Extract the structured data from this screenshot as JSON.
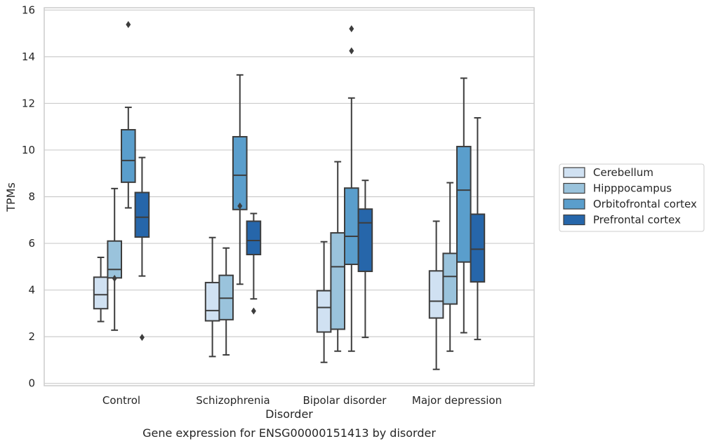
{
  "chart_data": {
    "type": "box",
    "caption": "Gene expression for ENSG00000151413 by disorder",
    "xlabel": "Disorder",
    "ylabel": "TPMs",
    "ylim": [
      -0.1,
      16.1
    ],
    "yticks": [
      0,
      2,
      4,
      6,
      8,
      10,
      12,
      14,
      16
    ],
    "grid": "horizontal",
    "legend_position": "right",
    "categories": [
      "Control",
      "Schizophrenia",
      "Bipolar disorder",
      "Major depression"
    ],
    "series": [
      {
        "name": "Cerebellum",
        "color": "#d0e1f2",
        "boxes": [
          {
            "whislo": 2.65,
            "q1": 3.2,
            "med": 3.8,
            "q3": 4.55,
            "whishi": 5.4,
            "fliers": []
          },
          {
            "whislo": 1.15,
            "q1": 2.68,
            "med": 3.12,
            "q3": 4.32,
            "whishi": 6.25,
            "fliers": []
          },
          {
            "whislo": 0.9,
            "q1": 2.2,
            "med": 3.25,
            "q3": 3.97,
            "whishi": 6.07,
            "fliers": []
          },
          {
            "whislo": 0.6,
            "q1": 2.8,
            "med": 3.52,
            "q3": 4.82,
            "whishi": 6.95,
            "fliers": []
          }
        ]
      },
      {
        "name": "Hipppocampus",
        "color": "#9ac3dc",
        "boxes": [
          {
            "whislo": 2.28,
            "q1": 4.52,
            "med": 4.88,
            "q3": 6.1,
            "whishi": 8.35,
            "fliers": [
              4.5
            ]
          },
          {
            "whislo": 1.22,
            "q1": 2.73,
            "med": 3.65,
            "q3": 4.63,
            "whishi": 5.8,
            "fliers": []
          },
          {
            "whislo": 1.38,
            "q1": 2.32,
            "med": 5.0,
            "q3": 6.45,
            "whishi": 9.5,
            "fliers": []
          },
          {
            "whislo": 1.38,
            "q1": 3.4,
            "med": 4.58,
            "q3": 5.57,
            "whishi": 8.6,
            "fliers": []
          }
        ]
      },
      {
        "name": "Orbitofrontal cortex",
        "color": "#5a9ecc",
        "boxes": [
          {
            "whislo": 7.52,
            "q1": 8.62,
            "med": 9.55,
            "q3": 10.87,
            "whishi": 11.83,
            "fliers": [
              15.38
            ]
          },
          {
            "whislo": 4.25,
            "q1": 7.45,
            "med": 8.92,
            "q3": 10.57,
            "whishi": 13.22,
            "fliers": [
              7.6
            ]
          },
          {
            "whislo": 1.38,
            "q1": 5.1,
            "med": 6.3,
            "q3": 8.37,
            "whishi": 12.23,
            "fliers": [
              15.2,
              14.25
            ]
          },
          {
            "whislo": 2.17,
            "q1": 5.2,
            "med": 8.28,
            "q3": 10.15,
            "whishi": 13.08,
            "fliers": []
          }
        ]
      },
      {
        "name": "Prefrontal cortex",
        "color": "#2666aa",
        "boxes": [
          {
            "whislo": 4.6,
            "q1": 6.27,
            "med": 7.12,
            "q3": 8.18,
            "whishi": 9.68,
            "fliers": [
              1.97
            ]
          },
          {
            "whislo": 3.62,
            "q1": 5.52,
            "med": 6.12,
            "q3": 6.95,
            "whishi": 7.28,
            "fliers": [
              3.1
            ]
          },
          {
            "whislo": 1.97,
            "q1": 4.8,
            "med": 6.88,
            "q3": 7.47,
            "whishi": 8.7,
            "fliers": []
          },
          {
            "whislo": 1.88,
            "q1": 4.35,
            "med": 5.75,
            "q3": 7.25,
            "whishi": 11.38,
            "fliers": []
          }
        ]
      }
    ]
  }
}
